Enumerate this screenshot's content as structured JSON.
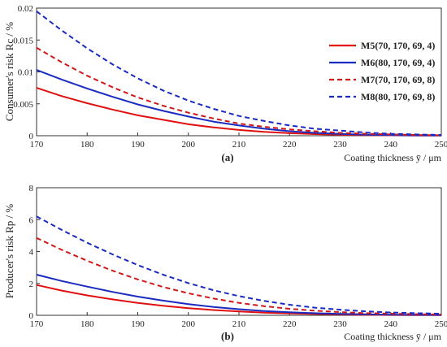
{
  "chart_data": [
    {
      "type": "line",
      "panel_label": "(a)",
      "xlabel": "Coating thickness ȳ / μm",
      "ylabel": "Consumer's  risk Rc / %",
      "xlim": [
        170,
        250
      ],
      "ylim": [
        0,
        0.02
      ],
      "x_ticks": [
        "170",
        "180",
        "190",
        "200",
        "210",
        "220",
        "230",
        "240",
        "250"
      ],
      "y_ticks": [
        "0",
        "0.005",
        "0.01",
        "0.015",
        "0.02"
      ],
      "x": [
        170,
        175,
        180,
        185,
        190,
        195,
        200,
        205,
        210,
        215,
        220,
        225,
        230,
        235,
        240,
        245,
        250
      ],
      "legend_placement": "right",
      "series": [
        {
          "name": "M5(70, 170, 69, 4)",
          "color": "#e01010",
          "dash": "solid",
          "values": [
            0.0075,
            0.0062,
            0.0051,
            0.0041,
            0.0032,
            0.0025,
            0.0018,
            0.0013,
            0.0009,
            0.0006,
            0.0004,
            0.00025,
            0.00015,
            0.0001,
            6e-05,
            3e-05,
            2e-05
          ]
        },
        {
          "name": "M6(80, 170, 69, 4)",
          "color": "#1a2bc0",
          "dash": "solid",
          "values": [
            0.0103,
            0.0088,
            0.0074,
            0.0061,
            0.0049,
            0.0039,
            0.003,
            0.0022,
            0.0016,
            0.0011,
            0.0007,
            0.00045,
            0.00028,
            0.00016,
            9e-05,
            5e-05,
            3e-05
          ]
        },
        {
          "name": "M7(70, 170, 69, 8)",
          "color": "#d01818",
          "dash": "dashed",
          "values": [
            0.0138,
            0.0115,
            0.0094,
            0.0076,
            0.006,
            0.0047,
            0.0036,
            0.0027,
            0.0019,
            0.0014,
            0.001,
            0.0007,
            0.00045,
            0.0003,
            0.0002,
            0.00012,
            8e-05
          ]
        },
        {
          "name": "M8(80, 170, 69, 8)",
          "color": "#1a2bc0",
          "dash": "dashed",
          "values": [
            0.0195,
            0.0165,
            0.0137,
            0.0112,
            0.009,
            0.0071,
            0.0055,
            0.0042,
            0.0031,
            0.0023,
            0.0016,
            0.0011,
            0.0008,
            0.0005,
            0.0003,
            0.0002,
            0.00012
          ]
        }
      ]
    },
    {
      "type": "line",
      "panel_label": "(b)",
      "xlabel": "Coating thickness ȳ / μm",
      "ylabel": "Producer's  risk Rp / %",
      "xlim": [
        170,
        250
      ],
      "ylim": [
        0,
        8
      ],
      "x_ticks": [
        "170",
        "180",
        "190",
        "200",
        "210",
        "220",
        "230",
        "240",
        "250"
      ],
      "y_ticks": [
        "0",
        "2",
        "4",
        "6",
        "8"
      ],
      "x": [
        170,
        175,
        180,
        185,
        190,
        195,
        200,
        205,
        210,
        215,
        220,
        225,
        230,
        235,
        240,
        245,
        250
      ],
      "series": [
        {
          "name": "M5(70, 170, 69, 4)",
          "color": "#e01010",
          "dash": "solid",
          "values": [
            1.9,
            1.55,
            1.25,
            1.0,
            0.78,
            0.6,
            0.45,
            0.33,
            0.24,
            0.17,
            0.12,
            0.08,
            0.05,
            0.03,
            0.02,
            0.01,
            0.01
          ]
        },
        {
          "name": "M6(80, 170, 69, 4)",
          "color": "#1a2bc0",
          "dash": "solid",
          "values": [
            2.55,
            2.15,
            1.8,
            1.47,
            1.17,
            0.92,
            0.7,
            0.52,
            0.38,
            0.27,
            0.19,
            0.13,
            0.09,
            0.06,
            0.04,
            0.03,
            0.02
          ]
        },
        {
          "name": "M7(70, 170, 69, 8)",
          "color": "#d01818",
          "dash": "dashed",
          "values": [
            4.85,
            4.1,
            3.42,
            2.8,
            2.25,
            1.78,
            1.38,
            1.05,
            0.78,
            0.57,
            0.41,
            0.29,
            0.2,
            0.14,
            0.1,
            0.07,
            0.05
          ]
        },
        {
          "name": "M8(80, 170, 69, 8)",
          "color": "#1a2bc0",
          "dash": "dashed",
          "values": [
            6.2,
            5.35,
            4.55,
            3.82,
            3.15,
            2.55,
            2.02,
            1.57,
            1.2,
            0.9,
            0.66,
            0.48,
            0.35,
            0.25,
            0.18,
            0.13,
            0.1
          ]
        }
      ]
    }
  ]
}
